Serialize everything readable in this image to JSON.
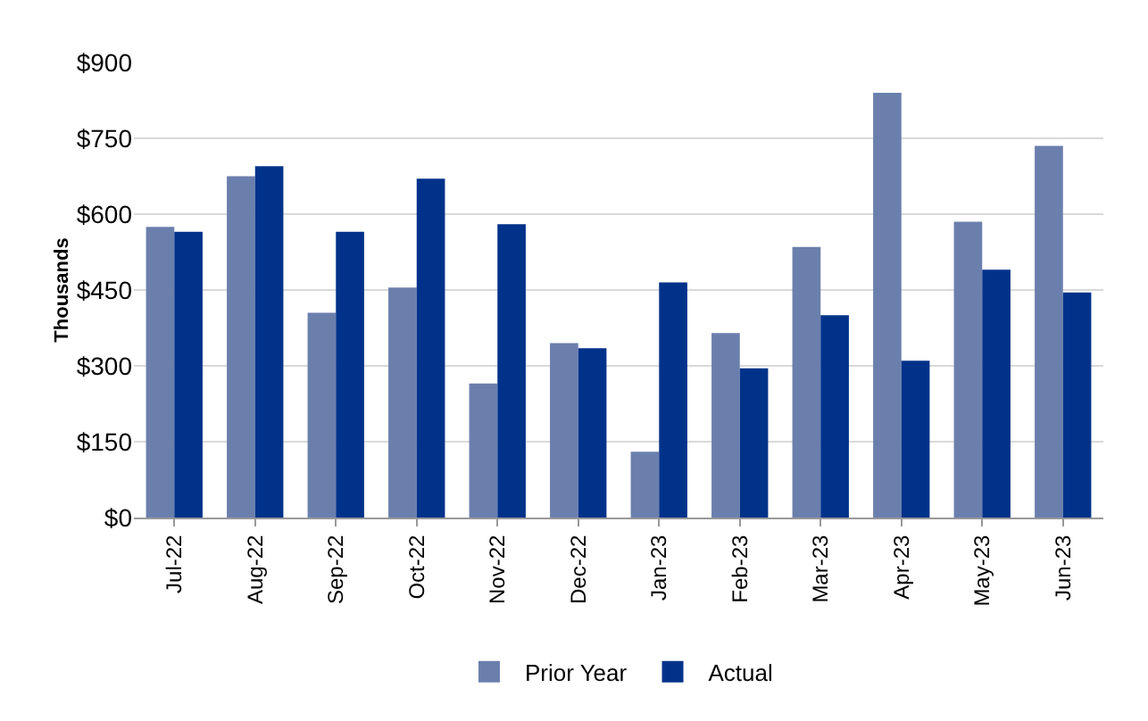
{
  "chart_data": {
    "type": "bar",
    "ylabel": "Thousands",
    "categories": [
      "Jul-22",
      "Aug-22",
      "Sep-22",
      "Oct-22",
      "Nov-22",
      "Dec-22",
      "Jan-23",
      "Feb-23",
      "Mar-23",
      "Apr-23",
      "May-23",
      "Jun-23"
    ],
    "series": [
      {
        "name": "Prior Year",
        "color": "#6b7fad",
        "values": [
          575,
          675,
          405,
          455,
          265,
          345,
          130,
          365,
          535,
          840,
          585,
          735
        ]
      },
      {
        "name": "Actual",
        "color": "#00328a",
        "values": [
          565,
          695,
          565,
          670,
          580,
          335,
          465,
          295,
          400,
          310,
          490,
          445
        ]
      }
    ],
    "ylim": [
      0,
      900
    ],
    "yticks": [
      {
        "value": 0,
        "label": "$0"
      },
      {
        "value": 150,
        "label": "$150"
      },
      {
        "value": 300,
        "label": "$300"
      },
      {
        "value": 450,
        "label": "$450"
      },
      {
        "value": 600,
        "label": "$600"
      },
      {
        "value": 750,
        "label": "$750"
      },
      {
        "value": 900,
        "label": "$900"
      }
    ],
    "grid": "y",
    "legend": "bottom"
  }
}
